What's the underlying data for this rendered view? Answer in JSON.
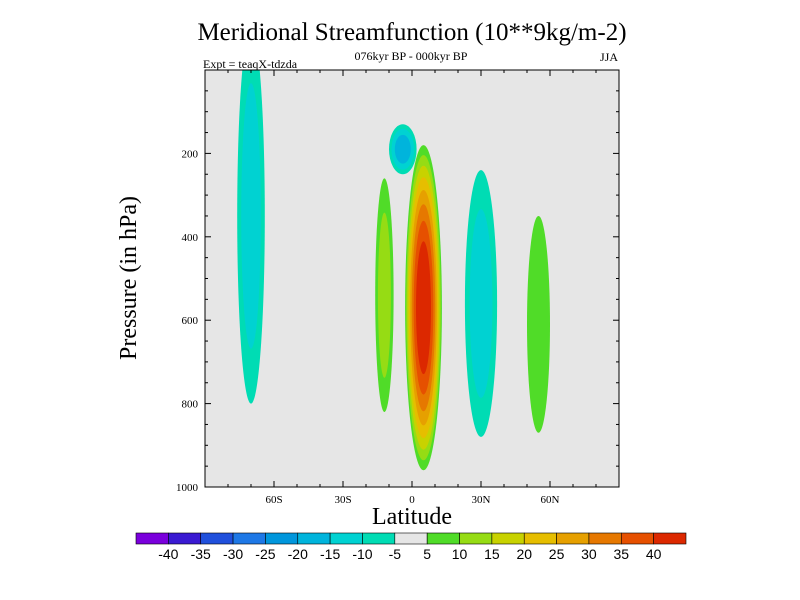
{
  "chart_data": {
    "type": "heatmap",
    "title": "Meridional Streamfunction (10**9kg/m-2)",
    "subtitle": "076kyr BP - 000kyr BP",
    "left_string": "Expt = teaqX-tdzda",
    "right_string": "JJA",
    "xlabel": "Latitude",
    "ylabel": "Pressure (in hPa)",
    "xlim": [
      -90,
      90
    ],
    "ylim": [
      0,
      1000
    ],
    "x_ticks": [
      {
        "value": -60,
        "label": "60S"
      },
      {
        "value": -30,
        "label": "30S"
      },
      {
        "value": 0,
        "label": "0"
      },
      {
        "value": 30,
        "label": "30N"
      },
      {
        "value": 60,
        "label": "60N"
      }
    ],
    "y_ticks": [
      {
        "value": 200,
        "label": "200"
      },
      {
        "value": 400,
        "label": "400"
      },
      {
        "value": 600,
        "label": "600"
      },
      {
        "value": 800,
        "label": "800"
      },
      {
        "value": 1000,
        "label": "1000"
      }
    ],
    "colorbar": {
      "levels": [
        "-40",
        "-35",
        "-30",
        "-25",
        "-20",
        "-15",
        "-10",
        "-5",
        "5",
        "10",
        "15",
        "20",
        "25",
        "30",
        "35",
        "40"
      ],
      "colors": [
        "#7a00dc",
        "#3a1ad2",
        "#2050dc",
        "#1e78e6",
        "#0096dc",
        "#00b4dc",
        "#00d2d2",
        "#00dcb4",
        "#e6e6e6",
        "#50dc28",
        "#96dc14",
        "#c8d200",
        "#e6be00",
        "#e6a000",
        "#e67800",
        "#e65000",
        "#dc2800"
      ]
    },
    "features": [
      {
        "label": "southern-hemisphere-negative-cell",
        "lat_center": -70,
        "p_center": 350,
        "lat_halfwidth": 6,
        "p_halfwidth": 450,
        "peak_value": -10
      },
      {
        "label": "upper-tropical-negative-cell",
        "lat_center": -4,
        "p_center": 190,
        "lat_halfwidth": 6,
        "p_halfwidth": 60,
        "peak_value": -15
      },
      {
        "label": "equatorial-positive-cell",
        "lat_center": 5,
        "p_center": 570,
        "lat_halfwidth": 8,
        "p_halfwidth": 390,
        "peak_value": 42
      },
      {
        "label": "southern-positive-flank",
        "lat_center": -12,
        "p_center": 540,
        "lat_halfwidth": 4,
        "p_halfwidth": 280,
        "peak_value": 10
      },
      {
        "label": "northern-subtropical-negative-cell",
        "lat_center": 30,
        "p_center": 560,
        "lat_halfwidth": 7,
        "p_halfwidth": 320,
        "peak_value": -10
      },
      {
        "label": "northern-midlatitude-positive-cell",
        "lat_center": 55,
        "p_center": 610,
        "lat_halfwidth": 5,
        "p_halfwidth": 260,
        "peak_value": 5
      }
    ]
  }
}
